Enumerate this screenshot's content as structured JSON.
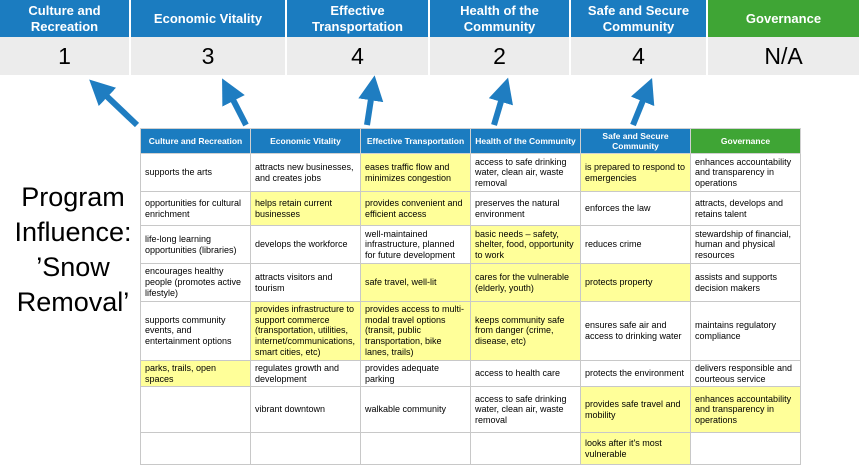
{
  "title": "Program Influence: ’Snow Removal’",
  "colors": {
    "header_blue": "#1b7cc0",
    "header_green": "#3fa535",
    "highlight_yellow": "#ffff99",
    "score_band_gray": "#ececec",
    "arrow_blue": "#1f7dc1"
  },
  "banner": {
    "columns": [
      {
        "label": "Culture and Recreation",
        "score": "1",
        "color": "blue"
      },
      {
        "label": "Economic Vitality",
        "score": "3",
        "color": "blue"
      },
      {
        "label": "Effective Transportation",
        "score": "4",
        "color": "blue"
      },
      {
        "label": "Health of the Community",
        "score": "2",
        "color": "blue"
      },
      {
        "label": "Safe and Secure Community",
        "score": "4",
        "color": "blue"
      },
      {
        "label": "Governance",
        "score": "N/A",
        "color": "green"
      }
    ]
  },
  "matrix": {
    "headers": [
      {
        "label": "Culture and Recreation",
        "color": "blue"
      },
      {
        "label": "Economic Vitality",
        "color": "blue"
      },
      {
        "label": "Effective Transportation",
        "color": "blue"
      },
      {
        "label": "Health of the Community",
        "color": "blue"
      },
      {
        "label": "Safe and Secure Community",
        "color": "blue"
      },
      {
        "label": "Governance",
        "color": "green"
      }
    ],
    "rows": [
      [
        {
          "text": "supports the arts",
          "highlight": false
        },
        {
          "text": "attracts new businesses, and creates jobs",
          "highlight": false
        },
        {
          "text": "eases traffic flow and minimizes congestion",
          "highlight": true
        },
        {
          "text": "access to safe drinking water, clean air, waste removal",
          "highlight": false
        },
        {
          "text": "is prepared to respond to emergencies",
          "highlight": true
        },
        {
          "text": "enhances accountability and transparency in operations",
          "highlight": false
        }
      ],
      [
        {
          "text": "opportunities for cultural enrichment",
          "highlight": false
        },
        {
          "text": "helps retain current businesses",
          "highlight": true
        },
        {
          "text": "provides convenient and efficient access",
          "highlight": true
        },
        {
          "text": "preserves the natural environment",
          "highlight": false
        },
        {
          "text": "enforces the law",
          "highlight": false
        },
        {
          "text": "attracts, develops and retains talent",
          "highlight": false
        }
      ],
      [
        {
          "text": "life-long learning opportunities (libraries)",
          "highlight": false
        },
        {
          "text": "develops the workforce",
          "highlight": false
        },
        {
          "text": "well-maintained infrastructure, planned for future development",
          "highlight": false
        },
        {
          "text": "basic needs – safety, shelter, food, opportunity to work",
          "highlight": true
        },
        {
          "text": "reduces crime",
          "highlight": false
        },
        {
          "text": "stewardship of financial, human and physical resources",
          "highlight": false
        }
      ],
      [
        {
          "text": "encourages healthy people (promotes active lifestyle)",
          "highlight": false
        },
        {
          "text": "attracts visitors and tourism",
          "highlight": false
        },
        {
          "text": "safe travel, well-lit",
          "highlight": true
        },
        {
          "text": "cares for the vulnerable (elderly, youth)",
          "highlight": true
        },
        {
          "text": "protects property",
          "highlight": true
        },
        {
          "text": "assists and supports decision makers",
          "highlight": false
        }
      ],
      [
        {
          "text": "supports community events, and entertainment options",
          "highlight": false
        },
        {
          "text": "provides infrastructure to support commerce (transportation, utilities, internet/communications, smart cities, etc)",
          "highlight": true
        },
        {
          "text": "provides access to multi-modal travel options (transit, public transportation, bike lanes, trails)",
          "highlight": true
        },
        {
          "text": "keeps community safe from danger (crime, disease, etc)",
          "highlight": true
        },
        {
          "text": "ensures safe air and access to drinking water",
          "highlight": false
        },
        {
          "text": "maintains regulatory compliance",
          "highlight": false
        }
      ],
      [
        {
          "text": "parks, trails, open spaces",
          "highlight": true
        },
        {
          "text": "regulates growth and development",
          "highlight": false
        },
        {
          "text": "provides adequate parking",
          "highlight": false
        },
        {
          "text": "access to health care",
          "highlight": false
        },
        {
          "text": "protects the environment",
          "highlight": false
        },
        {
          "text": "delivers responsible and courteous service",
          "highlight": false
        }
      ],
      [
        {
          "text": "",
          "highlight": false
        },
        {
          "text": "vibrant downtown",
          "highlight": false
        },
        {
          "text": "walkable community",
          "highlight": false
        },
        {
          "text": "access to safe drinking water, clean air, waste removal",
          "highlight": false
        },
        {
          "text": "provides safe travel and mobility",
          "highlight": true
        },
        {
          "text": "enhances accountability and transparency in operations",
          "highlight": true
        }
      ],
      [
        {
          "text": "",
          "highlight": false
        },
        {
          "text": "",
          "highlight": false
        },
        {
          "text": "",
          "highlight": false
        },
        {
          "text": "",
          "highlight": false
        },
        {
          "text": "looks after it's most vulnerable",
          "highlight": true
        },
        {
          "text": "",
          "highlight": false
        }
      ]
    ]
  }
}
